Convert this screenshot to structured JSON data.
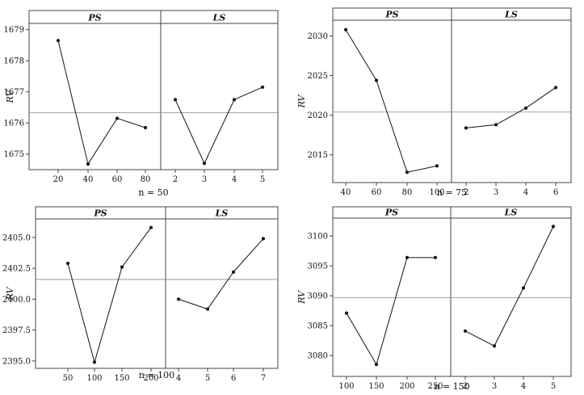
{
  "chart_data": [
    {
      "type": "line",
      "caption": "n = 50",
      "ylabel": "RV",
      "ylim": [
        1674.5,
        1679.2
      ],
      "yticks": [
        1675,
        1676,
        1677,
        1678,
        1679
      ],
      "reference_line": 1676.33,
      "panels": [
        {
          "name": "PS",
          "x": [
            20,
            40,
            60,
            80
          ],
          "xticks": [
            "20",
            "40",
            "60",
            "80"
          ],
          "values": [
            1678.65,
            1674.68,
            1676.15,
            1675.85
          ]
        },
        {
          "name": "LS",
          "x": [
            2,
            3,
            4,
            5
          ],
          "xticks": [
            "2",
            "3",
            "4",
            "5"
          ],
          "values": [
            1676.75,
            1674.7,
            1676.75,
            1677.15
          ]
        }
      ]
    },
    {
      "type": "line",
      "caption": "n = 75",
      "ylabel": "RV",
      "ylim": [
        2011.5,
        2032
      ],
      "yticks": [
        2015,
        2020,
        2025,
        2030
      ],
      "reference_line": 2020.4,
      "panels": [
        {
          "name": "PS",
          "x": [
            40,
            60,
            80,
            100
          ],
          "xticks": [
            "40",
            "60",
            "80",
            "100"
          ],
          "values": [
            2030.8,
            2024.4,
            2012.8,
            2013.6
          ]
        },
        {
          "name": "LS",
          "x": [
            2,
            3,
            4,
            6
          ],
          "xticks": [
            "2",
            "3",
            "4",
            "6"
          ],
          "values": [
            2018.4,
            2018.8,
            2020.9,
            2023.5
          ]
        }
      ]
    },
    {
      "type": "line",
      "caption": "n = 100",
      "ylabel": "RV",
      "ylim": [
        2394.4,
        2406.5
      ],
      "yticks": [
        2395.0,
        2397.5,
        2400.0,
        2402.5,
        2405.0
      ],
      "ytick_labels": [
        "2395.0",
        "2397.5",
        "2400.0",
        "2402.5",
        "2405.0"
      ],
      "reference_line": 2401.6,
      "panels": [
        {
          "name": "PS",
          "x": [
            50,
            100,
            150,
            200
          ],
          "xticks": [
            "50",
            "100",
            "150",
            "200"
          ],
          "values": [
            2402.9,
            2394.9,
            2402.6,
            2405.8
          ]
        },
        {
          "name": "LS",
          "x": [
            4,
            5,
            6,
            7
          ],
          "xticks": [
            "4",
            "5",
            "6",
            "7"
          ],
          "values": [
            2400.0,
            2399.2,
            2402.2,
            2404.9
          ]
        }
      ]
    },
    {
      "type": "line",
      "caption": "n = 150",
      "ylabel": "RV",
      "ylim": [
        3076.5,
        3103
      ],
      "yticks": [
        3080,
        3085,
        3090,
        3095,
        3100
      ],
      "reference_line": 3089.7,
      "panels": [
        {
          "name": "PS",
          "x": [
            100,
            150,
            200,
            250
          ],
          "xticks": [
            "100",
            "150",
            "200",
            "250"
          ],
          "values": [
            3087.1,
            3078.5,
            3096.4,
            3096.4
          ]
        },
        {
          "name": "LS",
          "x": [
            2,
            3,
            4,
            5
          ],
          "xticks": [
            "2",
            "3",
            "4",
            "5"
          ],
          "values": [
            3084.1,
            3081.6,
            3091.3,
            3101.6
          ]
        }
      ]
    }
  ]
}
